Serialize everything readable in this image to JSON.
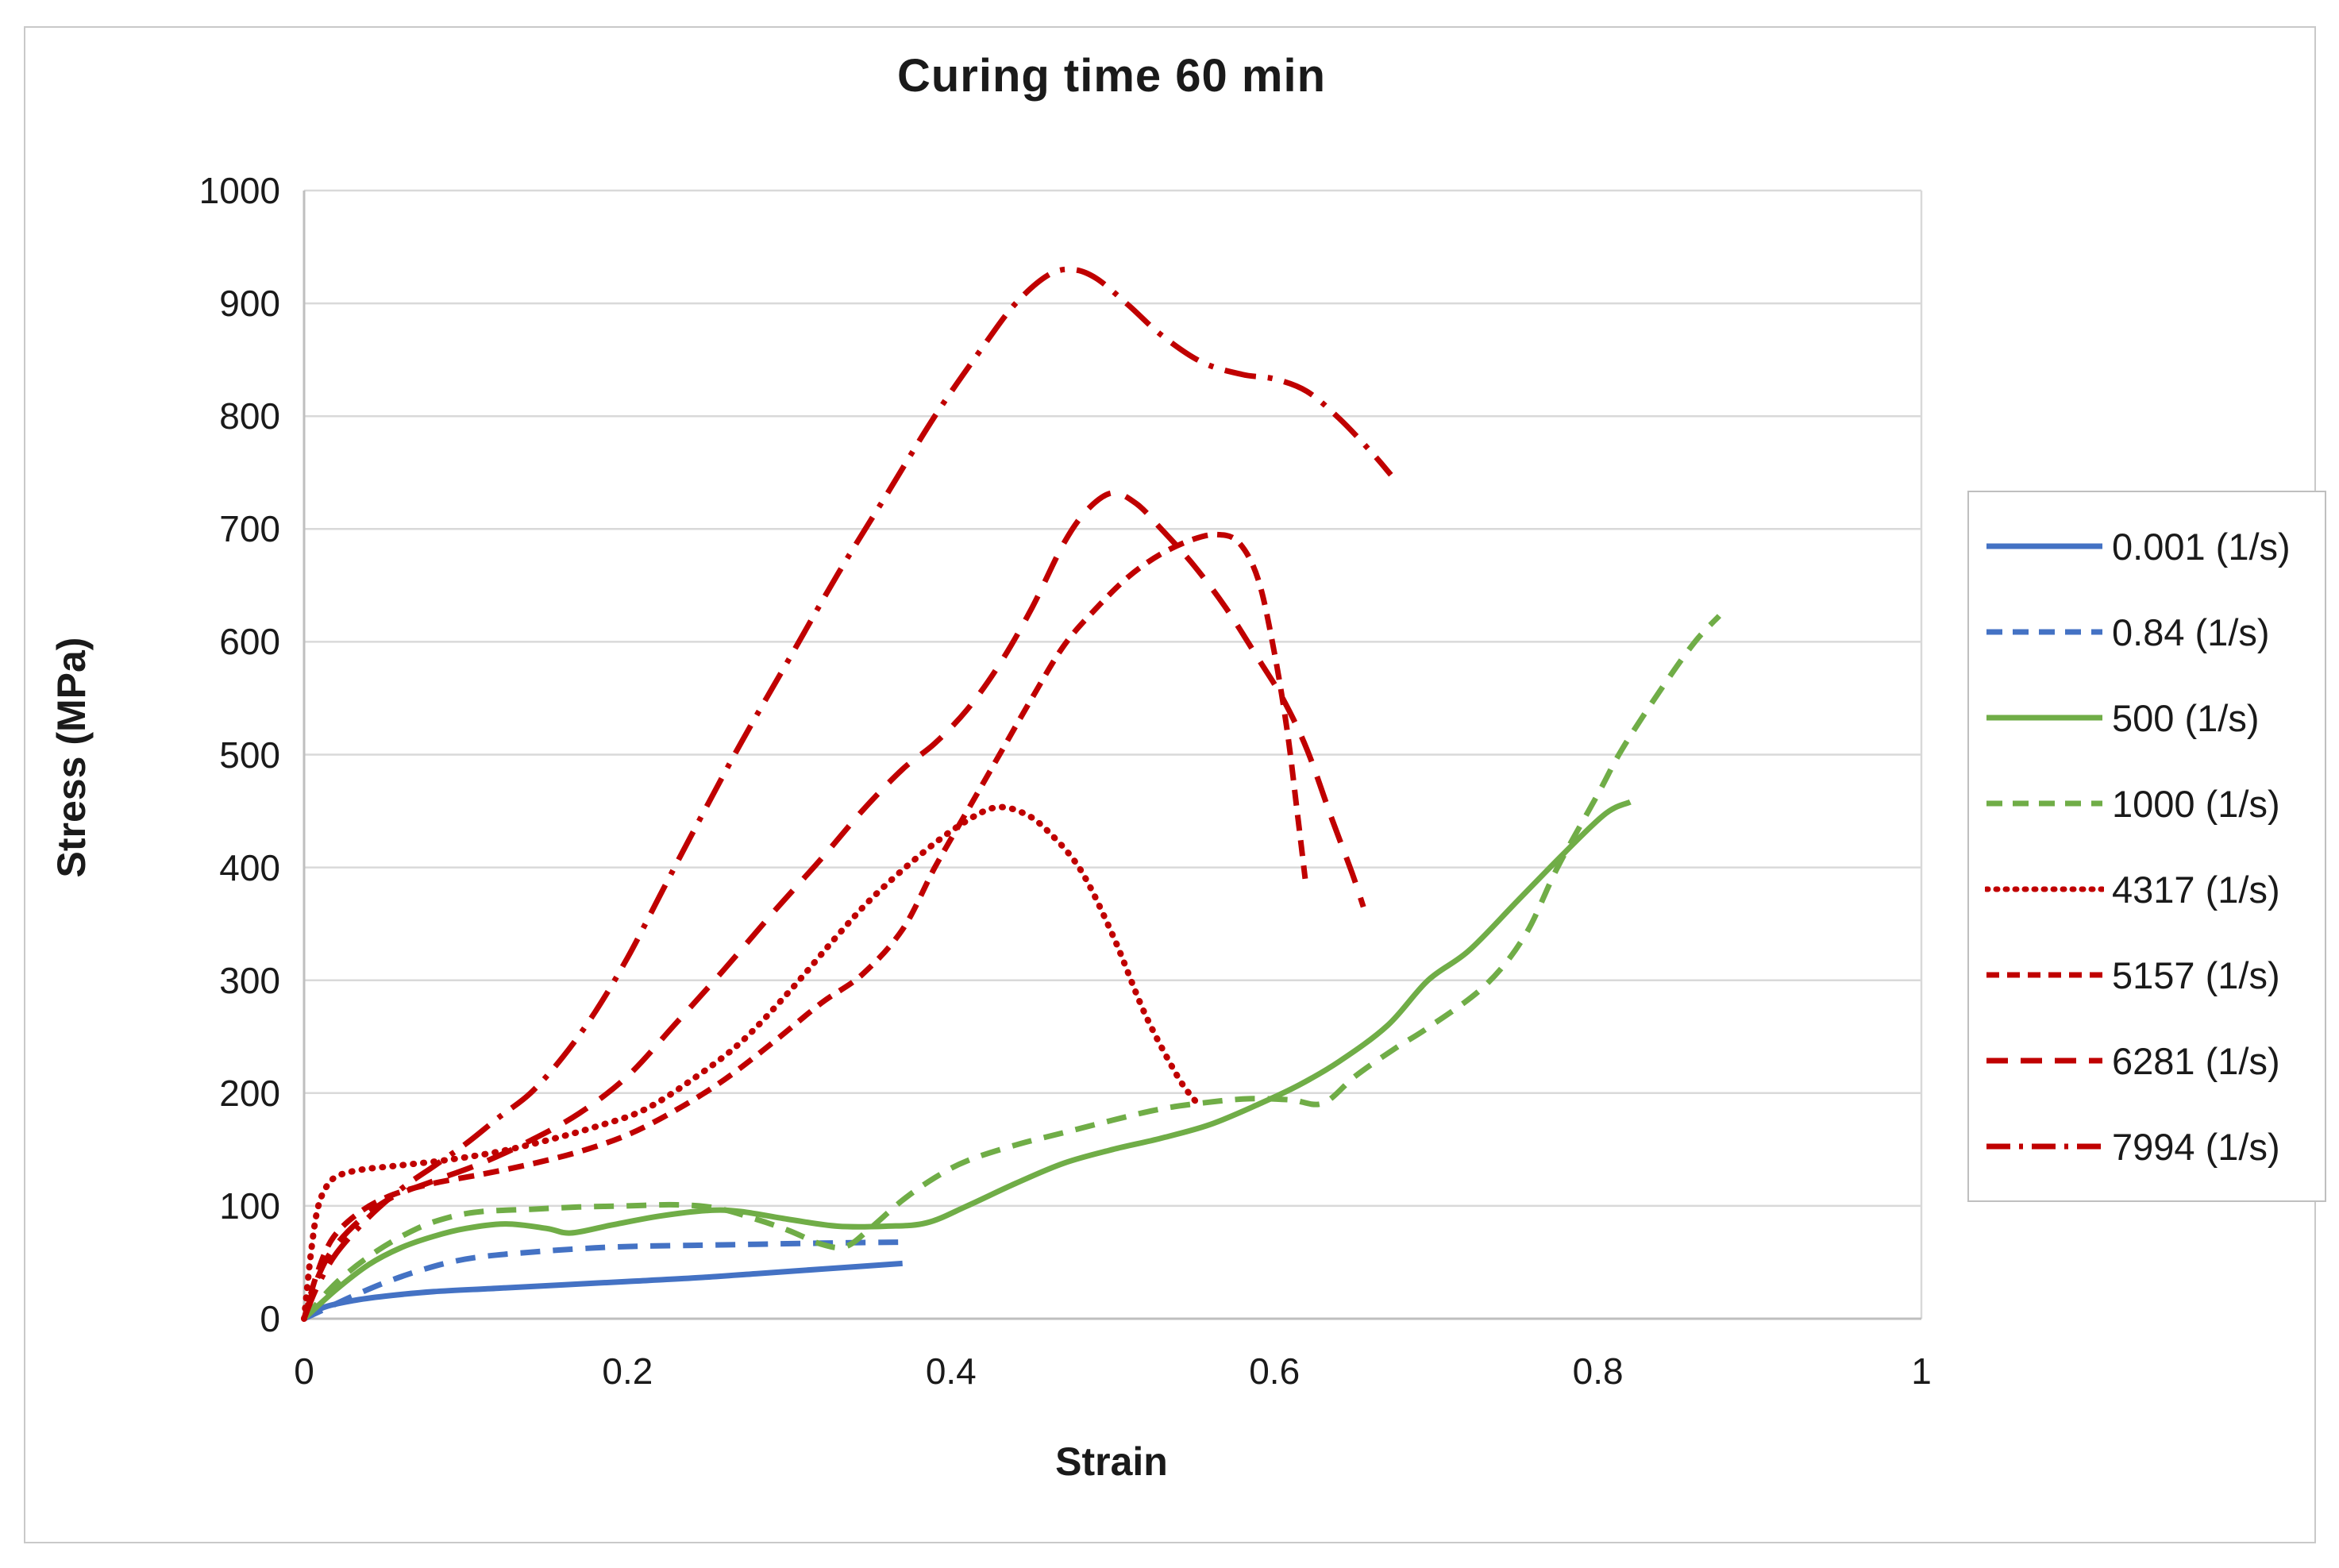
{
  "chart_data": {
    "type": "line",
    "title": "Curing time 60 min",
    "xlabel": "Strain",
    "ylabel": "Stress (MPa)",
    "xlim": [
      0,
      1
    ],
    "ylim": [
      0,
      1000
    ],
    "x_ticks": [
      0,
      0.2,
      0.4,
      0.6,
      0.8,
      1
    ],
    "x_tick_labels": [
      "0",
      "0.2",
      "0.4",
      "0.6",
      "0.8",
      "1"
    ],
    "y_ticks": [
      0,
      100,
      200,
      300,
      400,
      500,
      600,
      700,
      800,
      900,
      1000
    ],
    "y_tick_labels": [
      "0",
      "100",
      "200",
      "300",
      "400",
      "500",
      "600",
      "700",
      "800",
      "900",
      "1000"
    ],
    "grid": "horizontal",
    "grid_color": "#d9d9d9",
    "axis_color": "#bfbfbf",
    "text_color": "#1a1a1a",
    "legend_position": "right",
    "legend_unit": "(1/s)",
    "series": [
      {
        "name": "0.001 (1/s)",
        "color": "#4472c4",
        "dash": "none",
        "points": [
          [
            0,
            0
          ],
          [
            0.012,
            10
          ],
          [
            0.03,
            16
          ],
          [
            0.05,
            20
          ],
          [
            0.08,
            24
          ],
          [
            0.12,
            27
          ],
          [
            0.16,
            30
          ],
          [
            0.2,
            33
          ],
          [
            0.24,
            36
          ],
          [
            0.28,
            40
          ],
          [
            0.32,
            44
          ],
          [
            0.35,
            47
          ],
          [
            0.37,
            49
          ]
        ]
      },
      {
        "name": "0.84 (1/s)",
        "color": "#4472c4",
        "dash": "medium",
        "points": [
          [
            0,
            0
          ],
          [
            0.015,
            10
          ],
          [
            0.03,
            20
          ],
          [
            0.05,
            32
          ],
          [
            0.07,
            42
          ],
          [
            0.09,
            50
          ],
          [
            0.11,
            55
          ],
          [
            0.14,
            59
          ],
          [
            0.17,
            62
          ],
          [
            0.2,
            64
          ],
          [
            0.24,
            65
          ],
          [
            0.28,
            66
          ],
          [
            0.32,
            67
          ],
          [
            0.375,
            68
          ]
        ]
      },
      {
        "name": "500 (1/s)",
        "color": "#70ad47",
        "dash": "none",
        "points": [
          [
            0,
            0
          ],
          [
            0.02,
            26
          ],
          [
            0.04,
            48
          ],
          [
            0.06,
            63
          ],
          [
            0.08,
            73
          ],
          [
            0.1,
            80
          ],
          [
            0.125,
            84
          ],
          [
            0.15,
            80
          ],
          [
            0.165,
            76
          ],
          [
            0.19,
            83
          ],
          [
            0.22,
            91
          ],
          [
            0.25,
            96
          ],
          [
            0.27,
            95
          ],
          [
            0.3,
            88
          ],
          [
            0.33,
            82
          ],
          [
            0.36,
            82
          ],
          [
            0.385,
            85
          ],
          [
            0.41,
            100
          ],
          [
            0.44,
            120
          ],
          [
            0.47,
            138
          ],
          [
            0.5,
            150
          ],
          [
            0.53,
            160
          ],
          [
            0.56,
            172
          ],
          [
            0.59,
            190
          ],
          [
            0.615,
            207
          ],
          [
            0.64,
            228
          ],
          [
            0.67,
            260
          ],
          [
            0.695,
            300
          ],
          [
            0.72,
            326
          ],
          [
            0.75,
            370
          ],
          [
            0.78,
            414
          ],
          [
            0.805,
            448
          ],
          [
            0.82,
            458
          ]
        ]
      },
      {
        "name": "1000 (1/s)",
        "color": "#70ad47",
        "dash": "medium",
        "points": [
          [
            0,
            0
          ],
          [
            0.02,
            32
          ],
          [
            0.045,
            60
          ],
          [
            0.07,
            80
          ],
          [
            0.09,
            90
          ],
          [
            0.11,
            95
          ],
          [
            0.14,
            97
          ],
          [
            0.17,
            99
          ],
          [
            0.2,
            100
          ],
          [
            0.23,
            101
          ],
          [
            0.255,
            98
          ],
          [
            0.28,
            88
          ],
          [
            0.3,
            78
          ],
          [
            0.32,
            66
          ],
          [
            0.335,
            64
          ],
          [
            0.35,
            80
          ],
          [
            0.37,
            105
          ],
          [
            0.39,
            125
          ],
          [
            0.41,
            140
          ],
          [
            0.44,
            154
          ],
          [
            0.47,
            165
          ],
          [
            0.5,
            176
          ],
          [
            0.53,
            186
          ],
          [
            0.56,
            192
          ],
          [
            0.585,
            195
          ],
          [
            0.61,
            194
          ],
          [
            0.63,
            191
          ],
          [
            0.65,
            215
          ],
          [
            0.675,
            240
          ],
          [
            0.695,
            258
          ],
          [
            0.73,
            295
          ],
          [
            0.755,
            340
          ],
          [
            0.775,
            400
          ],
          [
            0.8,
            465
          ],
          [
            0.815,
            505
          ],
          [
            0.84,
            560
          ],
          [
            0.86,
            600
          ],
          [
            0.875,
            623
          ]
        ]
      },
      {
        "name": "4317 (1/s)",
        "color": "#c00000",
        "dash": "dot",
        "points": [
          [
            0,
            0
          ],
          [
            0.004,
            55
          ],
          [
            0.008,
            95
          ],
          [
            0.013,
            115
          ],
          [
            0.02,
            126
          ],
          [
            0.035,
            132
          ],
          [
            0.06,
            136
          ],
          [
            0.09,
            141
          ],
          [
            0.12,
            148
          ],
          [
            0.15,
            158
          ],
          [
            0.18,
            170
          ],
          [
            0.21,
            185
          ],
          [
            0.24,
            212
          ],
          [
            0.27,
            245
          ],
          [
            0.3,
            290
          ],
          [
            0.33,
            340
          ],
          [
            0.352,
            374
          ],
          [
            0.38,
            410
          ],
          [
            0.405,
            437
          ],
          [
            0.427,
            453
          ],
          [
            0.445,
            448
          ],
          [
            0.46,
            432
          ],
          [
            0.48,
            398
          ],
          [
            0.5,
            340
          ],
          [
            0.52,
            270
          ],
          [
            0.54,
            215
          ],
          [
            0.551,
            193
          ]
        ]
      },
      {
        "name": "5157 (1/s)",
        "color": "#c00000",
        "dash": "short",
        "points": [
          [
            0,
            0
          ],
          [
            0.008,
            40
          ],
          [
            0.018,
            72
          ],
          [
            0.035,
            95
          ],
          [
            0.055,
            110
          ],
          [
            0.08,
            120
          ],
          [
            0.11,
            128
          ],
          [
            0.14,
            137
          ],
          [
            0.17,
            148
          ],
          [
            0.2,
            163
          ],
          [
            0.23,
            185
          ],
          [
            0.26,
            212
          ],
          [
            0.29,
            245
          ],
          [
            0.32,
            280
          ],
          [
            0.345,
            305
          ],
          [
            0.37,
            345
          ],
          [
            0.39,
            400
          ],
          [
            0.41,
            450
          ],
          [
            0.43,
            500
          ],
          [
            0.45,
            550
          ],
          [
            0.47,
            597
          ],
          [
            0.49,
            630
          ],
          [
            0.51,
            658
          ],
          [
            0.53,
            678
          ],
          [
            0.55,
            691
          ],
          [
            0.565,
            695
          ],
          [
            0.578,
            688
          ],
          [
            0.59,
            655
          ],
          [
            0.6,
            590
          ],
          [
            0.608,
            520
          ],
          [
            0.614,
            450
          ],
          [
            0.619,
            390
          ]
        ]
      },
      {
        "name": "6281 (1/s)",
        "color": "#c00000",
        "dash": "long",
        "points": [
          [
            0,
            0
          ],
          [
            0.008,
            35
          ],
          [
            0.018,
            62
          ],
          [
            0.035,
            88
          ],
          [
            0.055,
            108
          ],
          [
            0.08,
            122
          ],
          [
            0.11,
            138
          ],
          [
            0.14,
            158
          ],
          [
            0.17,
            182
          ],
          [
            0.2,
            215
          ],
          [
            0.23,
            262
          ],
          [
            0.26,
            310
          ],
          [
            0.29,
            360
          ],
          [
            0.32,
            408
          ],
          [
            0.345,
            450
          ],
          [
            0.37,
            487
          ],
          [
            0.39,
            510
          ],
          [
            0.41,
            540
          ],
          [
            0.43,
            580
          ],
          [
            0.45,
            630
          ],
          [
            0.47,
            688
          ],
          [
            0.485,
            718
          ],
          [
            0.5,
            732
          ],
          [
            0.515,
            722
          ],
          [
            0.53,
            700
          ],
          [
            0.55,
            668
          ],
          [
            0.57,
            630
          ],
          [
            0.59,
            585
          ],
          [
            0.605,
            550
          ],
          [
            0.62,
            505
          ],
          [
            0.635,
            445
          ],
          [
            0.648,
            395
          ],
          [
            0.655,
            365
          ]
        ]
      },
      {
        "name": "7994 (1/s)",
        "color": "#c00000",
        "dash": "dashdot",
        "points": [
          [
            0,
            0
          ],
          [
            0.008,
            28
          ],
          [
            0.02,
            58
          ],
          [
            0.04,
            90
          ],
          [
            0.06,
            115
          ],
          [
            0.08,
            135
          ],
          [
            0.1,
            155
          ],
          [
            0.12,
            178
          ],
          [
            0.14,
            200
          ],
          [
            0.16,
            232
          ],
          [
            0.18,
            272
          ],
          [
            0.2,
            320
          ],
          [
            0.22,
            375
          ],
          [
            0.24,
            430
          ],
          [
            0.27,
            510
          ],
          [
            0.3,
            585
          ],
          [
            0.33,
            660
          ],
          [
            0.36,
            730
          ],
          [
            0.39,
            800
          ],
          [
            0.42,
            862
          ],
          [
            0.44,
            900
          ],
          [
            0.46,
            925
          ],
          [
            0.475,
            930
          ],
          [
            0.49,
            922
          ],
          [
            0.51,
            898
          ],
          [
            0.53,
            872
          ],
          [
            0.555,
            848
          ],
          [
            0.58,
            837
          ],
          [
            0.6,
            833
          ],
          [
            0.62,
            822
          ],
          [
            0.64,
            798
          ],
          [
            0.66,
            768
          ],
          [
            0.672,
            748
          ]
        ]
      }
    ]
  }
}
